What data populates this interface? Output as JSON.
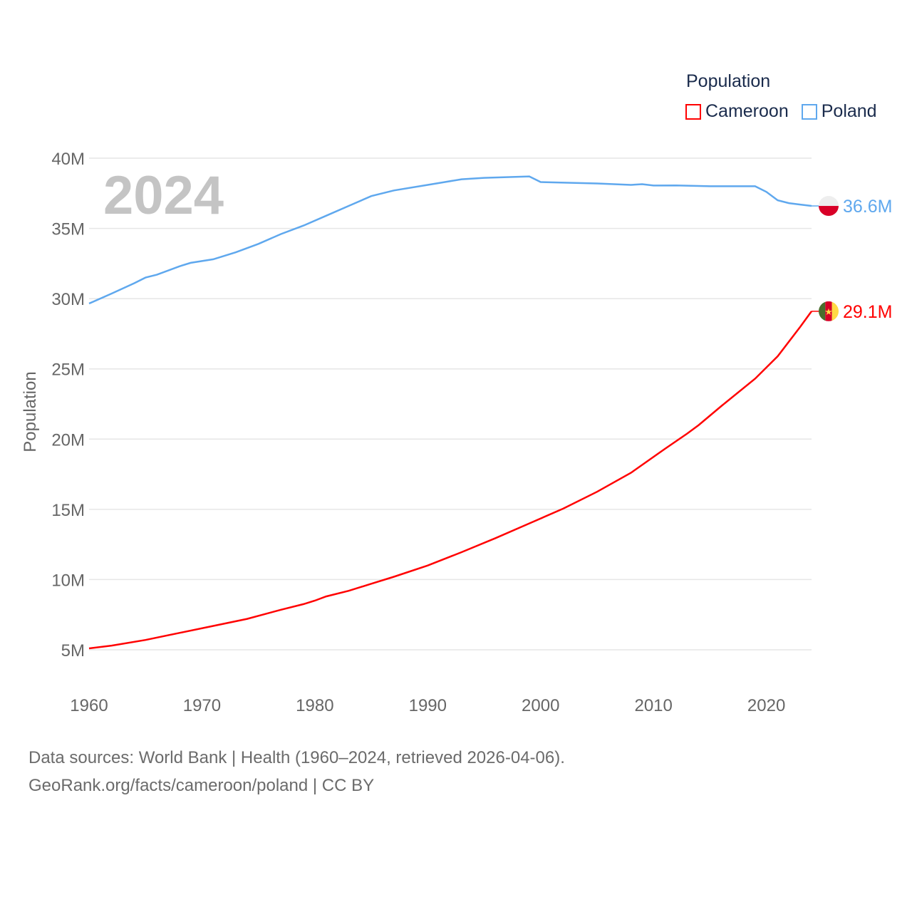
{
  "chart_data": {
    "type": "line",
    "title": "Population",
    "ylabel": "Population",
    "xlabel": "",
    "year_label": "2024",
    "xlim": [
      1960,
      2024
    ],
    "ylim": [
      5,
      40
    ],
    "x_ticks": [
      "1960",
      "1970",
      "1980",
      "1990",
      "2000",
      "2010",
      "2020"
    ],
    "y_ticks": [
      "5M",
      "10M",
      "15M",
      "20M",
      "25M",
      "30M",
      "35M",
      "40M"
    ],
    "grid": true,
    "legend_placement": "top-right",
    "series": [
      {
        "name": "Cameroon",
        "color": "#ff0000",
        "end_label": "29.1M",
        "points": [
          [
            1960,
            5.1
          ],
          [
            1962,
            5.3
          ],
          [
            1965,
            5.7
          ],
          [
            1968,
            6.2
          ],
          [
            1971,
            6.7
          ],
          [
            1974,
            7.2
          ],
          [
            1977,
            7.85
          ],
          [
            1979,
            8.25
          ],
          [
            1980,
            8.5
          ],
          [
            1981,
            8.8
          ],
          [
            1983,
            9.2
          ],
          [
            1985,
            9.7
          ],
          [
            1987,
            10.2
          ],
          [
            1990,
            11.0
          ],
          [
            1993,
            11.95
          ],
          [
            1996,
            12.95
          ],
          [
            1999,
            14.0
          ],
          [
            2002,
            15.05
          ],
          [
            2005,
            16.25
          ],
          [
            2008,
            17.6
          ],
          [
            2011,
            19.3
          ],
          [
            2013,
            20.4
          ],
          [
            2014,
            21.0
          ],
          [
            2016,
            22.35
          ],
          [
            2019,
            24.3
          ],
          [
            2021,
            25.9
          ],
          [
            2023,
            28.0
          ],
          [
            2024,
            29.1
          ]
        ]
      },
      {
        "name": "Poland",
        "color": "#5fa8ee",
        "end_label": "36.6M",
        "points": [
          [
            1960,
            29.65
          ],
          [
            1962,
            30.36
          ],
          [
            1964,
            31.1
          ],
          [
            1965,
            31.5
          ],
          [
            1966,
            31.7
          ],
          [
            1968,
            32.3
          ],
          [
            1969,
            32.55
          ],
          [
            1971,
            32.8
          ],
          [
            1973,
            33.3
          ],
          [
            1975,
            33.9
          ],
          [
            1977,
            34.6
          ],
          [
            1979,
            35.2
          ],
          [
            1981,
            35.9
          ],
          [
            1983,
            36.6
          ],
          [
            1985,
            37.3
          ],
          [
            1987,
            37.7
          ],
          [
            1990,
            38.1
          ],
          [
            1993,
            38.5
          ],
          [
            1995,
            38.6
          ],
          [
            1999,
            38.7
          ],
          [
            2000,
            38.3
          ],
          [
            2005,
            38.2
          ],
          [
            2008,
            38.1
          ],
          [
            2009,
            38.15
          ],
          [
            2010,
            38.05
          ],
          [
            2012,
            38.06
          ],
          [
            2015,
            38.0
          ],
          [
            2019,
            38.0
          ],
          [
            2020,
            37.6
          ],
          [
            2021,
            37.0
          ],
          [
            2022,
            36.8
          ],
          [
            2023,
            36.7
          ],
          [
            2024,
            36.6
          ]
        ]
      }
    ]
  },
  "footer": {
    "line1": "Data sources: World Bank | Health (1960–2024, retrieved 2026-04-06).",
    "line2": "GeoRank.org/facts/cameroon/poland | CC BY"
  }
}
